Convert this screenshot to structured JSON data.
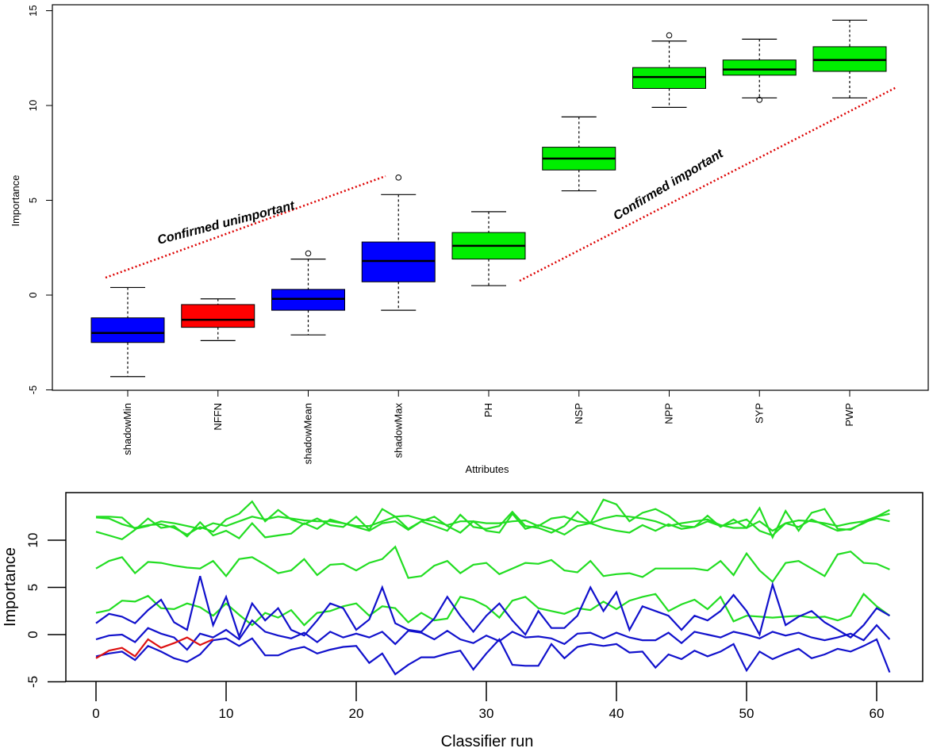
{
  "chart_data": [
    {
      "type": "box",
      "xlabel": "Attributes",
      "ylabel": "Importance",
      "ylim": [
        -5,
        15
      ],
      "yticks": [
        -5,
        0,
        5,
        10,
        15
      ],
      "boxes": [
        {
          "name": "shadowMin",
          "color": "#0000ff",
          "min": -4.3,
          "q1": -2.5,
          "median": -2.0,
          "q3": -1.2,
          "max": 0.4,
          "outliers": []
        },
        {
          "name": "NFFN",
          "color": "#ff0000",
          "min": -2.4,
          "q1": -1.7,
          "median": -1.3,
          "q3": -0.5,
          "max": -0.2,
          "outliers": []
        },
        {
          "name": "shadowMean",
          "color": "#0000ff",
          "min": -2.1,
          "q1": -0.8,
          "median": -0.2,
          "q3": 0.3,
          "max": 1.9,
          "outliers": [
            2.2
          ]
        },
        {
          "name": "shadowMax",
          "color": "#0000ff",
          "min": -0.8,
          "q1": 0.7,
          "median": 1.8,
          "q3": 2.8,
          "max": 5.3,
          "outliers": [
            6.2
          ]
        },
        {
          "name": "PH",
          "color": "#00ee00",
          "min": 0.5,
          "q1": 1.9,
          "median": 2.6,
          "q3": 3.3,
          "max": 4.4,
          "outliers": []
        },
        {
          "name": "NSP",
          "color": "#00ee00",
          "min": 5.5,
          "q1": 6.6,
          "median": 7.2,
          "q3": 7.8,
          "max": 9.4,
          "outliers": []
        },
        {
          "name": "NPP",
          "color": "#00ee00",
          "min": 9.9,
          "q1": 10.9,
          "median": 11.5,
          "q3": 12.0,
          "max": 13.4,
          "outliers": [
            13.7
          ]
        },
        {
          "name": "SYP",
          "color": "#00ee00",
          "min": 10.4,
          "q1": 11.6,
          "median": 11.9,
          "q3": 12.4,
          "max": 13.5,
          "outliers": [
            10.3
          ]
        },
        {
          "name": "PWP",
          "color": "#00ee00",
          "min": 10.4,
          "q1": 11.8,
          "median": 12.4,
          "q3": 13.1,
          "max": 14.5,
          "outliers": []
        }
      ],
      "annotations": [
        {
          "text": "Confirmed unimportant",
          "color": "#000000"
        },
        {
          "text": "Confirmed important",
          "color": "#000000"
        }
      ],
      "dotted_line_color": "#dd0000"
    },
    {
      "type": "line",
      "xlabel": "Classifier run",
      "ylabel": "Importance",
      "xlim": [
        -2.5,
        63
      ],
      "ylim": [
        -5,
        15
      ],
      "xticks": [
        0,
        10,
        20,
        30,
        40,
        50,
        60
      ],
      "yticks": [
        -5,
        0,
        5,
        10
      ],
      "series": [
        {
          "color": "#22dd22",
          "values": [
            12.5,
            12.5,
            12.4,
            11.2,
            11.5,
            12.0,
            11.8,
            11.5,
            11.2,
            11.8,
            11.5,
            12.0,
            12.5,
            12.2,
            12.5,
            12.3,
            12.1,
            12.0,
            12.0,
            11.8,
            11.5,
            11.5,
            12.0,
            12.5,
            12.6,
            12.2,
            12.0,
            11.6,
            12.0,
            12.0,
            11.8,
            11.8,
            12.0,
            12.1,
            11.5,
            12.3,
            12.5,
            12.0,
            11.8,
            12.3,
            12.6,
            12.5,
            12.3,
            12.0,
            11.5,
            11.8,
            12.0,
            12.2,
            11.6,
            11.3,
            11.3,
            12.0,
            11.0,
            11.8,
            12.1,
            12.0,
            11.8,
            11.5,
            11.8,
            12.0,
            12.5,
            12.8
          ]
        },
        {
          "color": "#22dd22",
          "values": [
            10.9,
            10.5,
            10.1,
            11.1,
            12.3,
            11.3,
            11.5,
            10.4,
            11.9,
            10.5,
            11.0,
            10.2,
            11.8,
            10.3,
            10.5,
            10.7,
            11.8,
            11.2,
            12.2,
            11.8,
            11.4,
            11.0,
            11.8,
            12.0,
            11.1,
            12.0,
            12.5,
            11.5,
            10.8,
            12.0,
            11.0,
            10.8,
            12.8,
            11.2,
            11.6,
            11.2,
            10.6,
            11.5,
            11.8,
            11.3,
            11.0,
            10.8,
            11.6,
            11.0,
            11.7,
            11.2,
            11.4,
            12.0,
            11.5,
            11.8,
            12.2,
            11.0,
            10.5,
            11.8,
            11.4,
            12.2,
            11.6,
            11.0,
            11.2,
            11.8,
            12.5,
            13.2
          ]
        },
        {
          "color": "#22dd22",
          "values": [
            12.4,
            12.3,
            11.7,
            11.3,
            11.6,
            11.7,
            11.3,
            10.6,
            11.4,
            10.9,
            12.2,
            12.8,
            14.1,
            12.0,
            13.2,
            12.2,
            11.7,
            12.3,
            11.6,
            11.4,
            12.5,
            11.1,
            13.3,
            12.5,
            11.2,
            12.0,
            11.5,
            11.0,
            12.7,
            11.4,
            11.2,
            11.5,
            13.0,
            11.5,
            11.3,
            10.8,
            11.5,
            13.0,
            11.8,
            14.3,
            13.8,
            12.0,
            12.9,
            13.3,
            12.6,
            11.5,
            11.4,
            12.6,
            11.4,
            12.2,
            11.3,
            13.4,
            10.3,
            13.1,
            11.0,
            12.9,
            13.3,
            11.2,
            11.1,
            11.9,
            12.3,
            12.0
          ]
        },
        {
          "color": "#22dd22",
          "values": [
            7.0,
            7.8,
            8.2,
            6.5,
            7.7,
            7.6,
            7.3,
            7.1,
            7.0,
            7.8,
            6.2,
            8.0,
            8.2,
            7.4,
            6.5,
            6.8,
            8.0,
            6.3,
            7.4,
            7.5,
            6.8,
            7.6,
            8.0,
            9.3,
            6.0,
            6.2,
            7.3,
            7.8,
            6.5,
            7.4,
            7.6,
            6.4,
            7.0,
            7.6,
            7.5,
            7.9,
            6.8,
            6.6,
            7.8,
            6.2,
            6.4,
            6.5,
            6.1,
            7.0,
            7.0,
            7.0,
            7.0,
            6.8,
            7.8,
            6.3,
            8.6,
            6.8,
            5.6,
            7.6,
            7.8,
            7.0,
            6.2,
            8.5,
            8.8,
            7.6,
            7.5,
            6.9
          ]
        },
        {
          "color": "#22dd22",
          "values": [
            2.3,
            2.6,
            3.6,
            3.5,
            4.1,
            2.8,
            2.7,
            3.3,
            2.9,
            2.0,
            3.3,
            2.1,
            1.0,
            2.3,
            1.8,
            2.6,
            1.0,
            2.3,
            2.5,
            3.0,
            3.3,
            2.0,
            3.0,
            2.8,
            1.3,
            2.3,
            1.5,
            1.7,
            4.0,
            3.7,
            3.0,
            1.8,
            3.6,
            4.0,
            2.8,
            2.5,
            2.2,
            2.8,
            2.6,
            3.5,
            2.7,
            3.6,
            4.0,
            4.3,
            2.5,
            3.2,
            3.7,
            2.7,
            4.0,
            1.4,
            2.0,
            1.9,
            1.8,
            1.9,
            2.0,
            1.8,
            1.9,
            1.5,
            2.0,
            4.3,
            3.0,
            2.0
          ]
        },
        {
          "color": "#1111cc",
          "values": [
            1.2,
            2.2,
            1.9,
            1.2,
            2.6,
            3.7,
            1.3,
            0.5,
            6.2,
            1.0,
            4.0,
            -0.2,
            3.3,
            1.5,
            2.8,
            0.5,
            -0.1,
            1.5,
            3.3,
            2.8,
            0.5,
            1.6,
            5.0,
            1.2,
            0.5,
            0.3,
            1.7,
            4.0,
            2.0,
            0.3,
            2.0,
            3.3,
            1.5,
            0.0,
            2.5,
            0.7,
            0.7,
            2.0,
            5.0,
            2.5,
            4.5,
            0.5,
            3.0,
            2.5,
            2.0,
            0.5,
            2.0,
            1.5,
            2.5,
            4.2,
            2.5,
            0.0,
            5.3,
            1.0,
            1.9,
            2.5,
            1.3,
            0.5,
            -0.3,
            1.0,
            2.8,
            2.0
          ]
        },
        {
          "color": "#1111cc",
          "values": [
            -0.5,
            -0.1,
            0.0,
            -0.8,
            0.7,
            0.1,
            -0.3,
            -1.6,
            0.1,
            -0.3,
            0.5,
            -0.5,
            1.5,
            0.3,
            -0.1,
            -0.4,
            0.2,
            -0.8,
            0.3,
            -0.3,
            0.1,
            -0.3,
            0.3,
            -1.0,
            0.4,
            0.2,
            -0.5,
            0.4,
            -0.5,
            -0.9,
            -0.1,
            -0.7,
            0.3,
            -0.3,
            -0.2,
            -0.4,
            -1.0,
            0.1,
            0.2,
            -0.4,
            0.2,
            -0.3,
            -0.6,
            -0.6,
            0.2,
            -0.9,
            0.3,
            0.0,
            -0.3,
            0.3,
            0.0,
            -0.4,
            0.3,
            -0.1,
            0.2,
            -0.3,
            -0.6,
            -0.3,
            0.1,
            -0.6,
            1.0,
            -0.5
          ]
        },
        {
          "color": "#1111cc",
          "values": [
            -2.3,
            -2.0,
            -1.8,
            -2.7,
            -1.2,
            -1.8,
            -2.5,
            -2.9,
            -2.1,
            -0.6,
            -0.4,
            -1.2,
            -0.4,
            -2.2,
            -2.2,
            -1.6,
            -1.3,
            -2.0,
            -1.6,
            -1.3,
            -1.2,
            -3.0,
            -2.0,
            -4.2,
            -3.2,
            -2.4,
            -2.4,
            -2.0,
            -1.7,
            -3.7,
            -2.0,
            -0.5,
            -3.2,
            -3.3,
            -3.3,
            -1.0,
            -2.5,
            -1.3,
            -1.0,
            -1.2,
            -1.0,
            -1.9,
            -1.8,
            -3.5,
            -2.1,
            -2.6,
            -1.7,
            -2.3,
            -1.8,
            -1.0,
            -3.8,
            -1.8,
            -2.6,
            -2.0,
            -1.5,
            -2.5,
            -2.1,
            -1.5,
            -1.8,
            -1.2,
            -0.5,
            -4.0
          ]
        },
        {
          "color": "#dd1111",
          "values": [
            -2.5,
            -1.7,
            -1.4,
            -2.3,
            -0.5,
            -1.4,
            -0.9,
            -0.3,
            -1.1,
            -0.5
          ]
        }
      ]
    }
  ]
}
